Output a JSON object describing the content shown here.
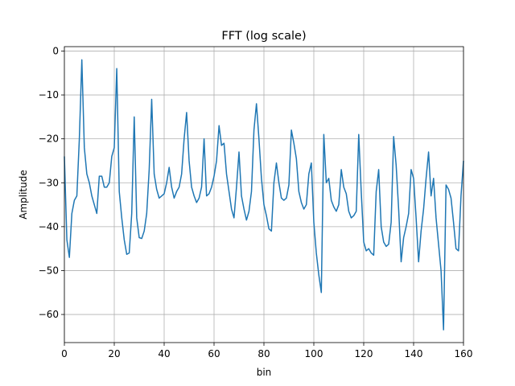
{
  "chart_data": {
    "type": "line",
    "title": "FFT (log scale)",
    "x_label": "bin",
    "y_label": "Amplitude",
    "x": [
      0,
      1,
      2,
      3,
      4,
      5,
      6,
      7,
      8,
      9,
      10,
      11,
      12,
      13,
      14,
      15,
      16,
      17,
      18,
      19,
      20,
      21,
      22,
      23,
      24,
      25,
      26,
      27,
      28,
      29,
      30,
      31,
      32,
      33,
      34,
      35,
      36,
      37,
      38,
      39,
      40,
      41,
      42,
      43,
      44,
      45,
      46,
      47,
      48,
      49,
      50,
      51,
      52,
      53,
      54,
      55,
      56,
      57,
      58,
      59,
      60,
      61,
      62,
      63,
      64,
      65,
      66,
      67,
      68,
      69,
      70,
      71,
      72,
      73,
      74,
      75,
      76,
      77,
      78,
      79,
      80,
      81,
      82,
      83,
      84,
      85,
      86,
      87,
      88,
      89,
      90,
      91,
      92,
      93,
      94,
      95,
      96,
      97,
      98,
      99,
      100,
      101,
      102,
      103,
      104,
      105,
      106,
      107,
      108,
      109,
      110,
      111,
      112,
      113,
      114,
      115,
      116,
      117,
      118,
      119,
      120,
      121,
      122,
      123,
      124,
      125,
      126,
      127,
      128,
      129,
      130,
      131,
      132,
      133,
      134,
      135,
      136,
      137,
      138,
      139,
      140,
      141,
      142,
      143,
      144,
      145,
      146,
      147,
      148,
      149,
      150,
      151,
      152,
      153,
      154,
      155,
      156,
      157,
      158,
      159,
      160
    ],
    "values": [
      -24,
      -43,
      -47,
      -37,
      -34,
      -33,
      -20,
      -2,
      -22,
      -28,
      -30,
      -33,
      -35,
      -37,
      -28.5,
      -28.5,
      -31,
      -31,
      -30,
      -24,
      -22,
      -4,
      -32,
      -38,
      -43,
      -46.3,
      -46,
      -37,
      -15,
      -38,
      -42.5,
      -42.7,
      -41,
      -37,
      -27,
      -11,
      -28,
      -31.5,
      -33.5,
      -33,
      -32.5,
      -30,
      -26.5,
      -31,
      -33.5,
      -32,
      -31,
      -28,
      -20,
      -14,
      -25,
      -31,
      -33,
      -34.5,
      -33.5,
      -31,
      -20,
      -33,
      -32.5,
      -31,
      -28.5,
      -25,
      -17,
      -21.5,
      -21,
      -28,
      -32,
      -36,
      -38,
      -31,
      -23,
      -33,
      -36,
      -38.5,
      -36.5,
      -32,
      -18,
      -12,
      -20,
      -29,
      -35,
      -37.5,
      -40.5,
      -41,
      -30,
      -25.5,
      -30,
      -33.5,
      -34,
      -33.5,
      -30.5,
      -18,
      -21,
      -24.5,
      -32,
      -34.5,
      -36,
      -35,
      -28,
      -25.5,
      -39,
      -46,
      -51,
      -55,
      -19,
      -30,
      -29,
      -34,
      -35.5,
      -36.5,
      -35,
      -27,
      -31,
      -32.5,
      -36.5,
      -38,
      -37.5,
      -36.5,
      -19,
      -32,
      -43.5,
      -45.5,
      -45,
      -46,
      -46.5,
      -32,
      -27,
      -40,
      -43.5,
      -44.5,
      -44,
      -39,
      -19.5,
      -26,
      -36,
      -48,
      -42.5,
      -40,
      -37,
      -27,
      -29,
      -38,
      -48,
      -41,
      -36,
      -29,
      -23,
      -33,
      -29,
      -38,
      -44,
      -50,
      -63.5,
      -30.5,
      -31.5,
      -33.5,
      -39,
      -45,
      -45.5,
      -33,
      -25
    ],
    "color": "#1f77b4",
    "grid": true,
    "xlim": [
      0,
      160
    ],
    "xticks": [
      0,
      20,
      40,
      60,
      80,
      100,
      120,
      140,
      160
    ],
    "ylim": [
      -66.4,
      1.0
    ],
    "yticks": [
      {
        "value": -60,
        "label": "−60"
      },
      {
        "value": -50,
        "label": "−50"
      },
      {
        "value": -40,
        "label": "−40"
      },
      {
        "value": -30,
        "label": "−30"
      },
      {
        "value": -20,
        "label": "−20"
      },
      {
        "value": -10,
        "label": "−10"
      },
      0
    ]
  }
}
